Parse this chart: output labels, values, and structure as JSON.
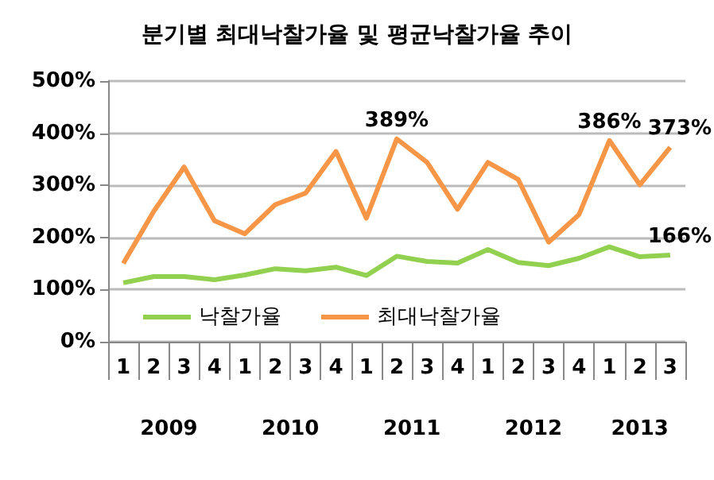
{
  "chart_data": {
    "type": "line",
    "title": "분기별 최대낙찰가율 및 평균낙찰가율 추이",
    "categories": [
      "1",
      "2",
      "3",
      "4",
      "1",
      "2",
      "3",
      "4",
      "1",
      "2",
      "3",
      "4",
      "1",
      "2",
      "3",
      "4",
      "1",
      "2",
      "3"
    ],
    "series": [
      {
        "name": "낙찰가율",
        "color": "#92d050",
        "values": [
          113,
          125,
          125,
          119,
          128,
          140,
          136,
          143,
          127,
          164,
          154,
          151,
          177,
          152,
          146,
          160,
          182,
          163,
          166
        ],
        "value_labels": [
          null,
          null,
          null,
          null,
          null,
          null,
          null,
          null,
          null,
          null,
          null,
          null,
          null,
          null,
          null,
          null,
          null,
          null,
          "166%"
        ]
      },
      {
        "name": "최대낙찰가율",
        "color": "#f79646",
        "values": [
          150,
          250,
          335,
          232,
          207,
          263,
          285,
          365,
          237,
          389,
          344,
          254,
          344,
          311,
          191,
          244,
          386,
          301,
          373
        ],
        "value_labels": [
          null,
          null,
          null,
          null,
          null,
          null,
          null,
          null,
          null,
          "389%",
          null,
          null,
          null,
          null,
          null,
          null,
          "386%",
          null,
          "373%"
        ]
      }
    ],
    "ylim": [
      0,
      500
    ],
    "yticks": [
      {
        "value": 0,
        "label": "0%"
      },
      {
        "value": 100,
        "label": "100%"
      },
      {
        "value": 200,
        "label": "200%"
      },
      {
        "value": 300,
        "label": "300%"
      },
      {
        "value": 400,
        "label": "400%"
      },
      {
        "value": 500,
        "label": "500%"
      }
    ],
    "annotations": [
      "2009",
      "2010",
      "2011",
      "2012",
      "2013"
    ],
    "grid": "y",
    "legend": "bottom left",
    "marker": "none",
    "line_style": "solid"
  }
}
